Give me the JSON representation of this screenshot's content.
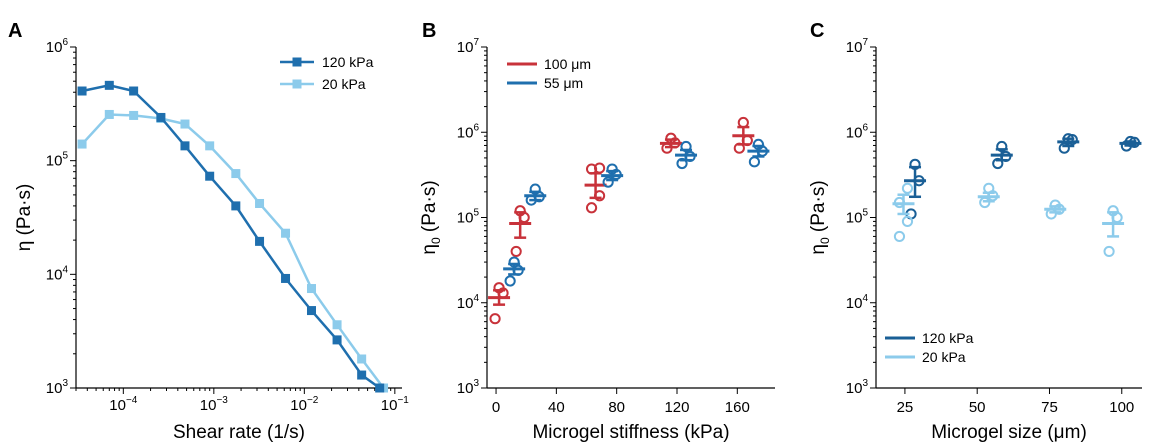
{
  "colors": {
    "dark_blue": "#1f6fae",
    "light_blue": "#8ccbeb",
    "red": "#c8323a",
    "c_dark": "#1a5f96"
  },
  "chart_data": [
    {
      "panel": "A",
      "type": "line",
      "xlabel": "Shear rate (1/s)",
      "ylabel": "η  (Pa·s)",
      "xscale": "log",
      "yscale": "log",
      "xlim": [
        3e-05,
        0.12
      ],
      "ylim": [
        1000,
        1000000
      ],
      "x_tick_labels": [
        {
          "base": "10",
          "exp": "−4"
        },
        {
          "base": "10",
          "exp": "−3"
        },
        {
          "base": "10",
          "exp": "−2"
        },
        {
          "base": "10",
          "exp": "−1"
        }
      ],
      "y_tick_labels": [
        {
          "base": "10",
          "exp": "3"
        },
        {
          "base": "10",
          "exp": "4"
        },
        {
          "base": "10",
          "exp": "5"
        },
        {
          "base": "10",
          "exp": "6"
        }
      ],
      "legend_placement": "top-right",
      "series": [
        {
          "name": "120 kPa",
          "color": "#1f6fae",
          "x": [
            3.5e-05,
            7e-05,
            0.00013,
            0.00026,
            0.00048,
            0.0009,
            0.00175,
            0.0032,
            0.0062,
            0.012,
            0.023,
            0.043,
            0.068
          ],
          "y": [
            410000,
            460000,
            410000,
            240000,
            135000,
            73000,
            40000,
            19500,
            9200,
            4800,
            2650,
            1300,
            1000
          ]
        },
        {
          "name": "20 kPa",
          "color": "#8ccbeb",
          "x": [
            3.5e-05,
            7e-05,
            0.00013,
            0.00026,
            0.00048,
            0.0009,
            0.00175,
            0.0032,
            0.0062,
            0.012,
            0.023,
            0.043,
            0.075
          ],
          "y": [
            140000,
            255000,
            250000,
            235000,
            210000,
            135000,
            77000,
            42000,
            23000,
            7500,
            3600,
            1800,
            1000
          ]
        }
      ]
    },
    {
      "panel": "B",
      "type": "scatter",
      "xlabel": "Microgel stiffness (kPa)",
      "ylabel_base": "η",
      "ylabel_sub": "0",
      "ylabel_unit": "(Pa·s)",
      "xscale": "linear",
      "yscale": "log",
      "xlim": [
        -6,
        185
      ],
      "ylim": [
        1000,
        10000000
      ],
      "x_ticks": [
        0,
        40,
        80,
        120,
        160
      ],
      "y_tick_labels": [
        {
          "base": "10",
          "exp": "3"
        },
        {
          "base": "10",
          "exp": "4"
        },
        {
          "base": "10",
          "exp": "5"
        },
        {
          "base": "10",
          "exp": "6"
        },
        {
          "base": "10",
          "exp": "7"
        }
      ],
      "legend_placement": "top-left",
      "series": [
        {
          "name": "100 μm",
          "color": "#c8323a",
          "groups": [
            {
              "x": 2,
              "points": [
                6500,
                13000,
                15000
              ],
              "mean": 11500,
              "sem": [
                9500,
                14000
              ]
            },
            {
              "x": 16,
              "points": [
                40000,
                100000,
                120000
              ],
              "mean": 85000,
              "sem": [
                58000,
                115000
              ]
            },
            {
              "x": 66,
              "points": [
                130000,
                180000,
                370000,
                380000
              ],
              "mean": 240000,
              "sem": [
                170000,
                330000
              ]
            },
            {
              "x": 116,
              "points": [
                650000,
                750000,
                850000
              ],
              "mean": 740000,
              "sem": [
                670000,
                820000
              ]
            },
            {
              "x": 164,
              "points": [
                650000,
                800000,
                1300000
              ],
              "mean": 910000,
              "sem": [
                720000,
                1150000
              ]
            }
          ]
        },
        {
          "name": "55 μm",
          "color": "#1f6fae",
          "groups": [
            {
              "x": 12,
              "points": [
                18000,
                24000,
                30000
              ],
              "mean": 25000,
              "sem": [
                21500,
                28500
              ]
            },
            {
              "x": 26,
              "points": [
                160000,
                175000,
                215000
              ],
              "mean": 180000,
              "sem": [
                160000,
                200000
              ]
            },
            {
              "x": 77,
              "points": [
                260000,
                320000,
                370000
              ],
              "mean": 310000,
              "sem": [
                275000,
                350000
              ]
            },
            {
              "x": 126,
              "points": [
                430000,
                520000,
                680000
              ],
              "mean": 540000,
              "sem": [
                470000,
                620000
              ]
            },
            {
              "x": 174,
              "points": [
                450000,
                600000,
                720000
              ],
              "mean": 600000,
              "sem": [
                520000,
                690000
              ]
            }
          ]
        }
      ]
    },
    {
      "panel": "C",
      "type": "scatter",
      "xlabel": "Microgel size (μm)",
      "ylabel_base": "η",
      "ylabel_sub": "0",
      "ylabel_unit": "(Pa·s)",
      "xscale": "linear",
      "yscale": "log",
      "xlim": [
        15,
        107
      ],
      "ylim": [
        1000,
        10000000
      ],
      "x_ticks": [
        25,
        50,
        75,
        100
      ],
      "y_tick_labels": [
        {
          "base": "10",
          "exp": "3"
        },
        {
          "base": "10",
          "exp": "4"
        },
        {
          "base": "10",
          "exp": "5"
        },
        {
          "base": "10",
          "exp": "6"
        },
        {
          "base": "10",
          "exp": "7"
        }
      ],
      "legend_placement": "bottom-left",
      "series": [
        {
          "name": "120 kPa",
          "color": "#1a5f96",
          "groups": [
            {
              "x": 28.5,
              "points": [
                110000,
                270000,
                420000
              ],
              "mean": 270000,
              "sem": [
                175000,
                390000
              ]
            },
            {
              "x": 58.5,
              "points": [
                430000,
                520000,
                680000
              ],
              "mean": 540000,
              "sem": [
                470000,
                630000
              ]
            },
            {
              "x": 81.5,
              "points": [
                650000,
                820000,
                840000
              ],
              "mean": 770000,
              "sem": [
                690000,
                840000
              ]
            },
            {
              "x": 103,
              "points": [
                690000,
                760000,
                780000
              ],
              "mean": 740000,
              "sem": [
                700000,
                780000
              ]
            }
          ]
        },
        {
          "name": "20 kPa",
          "color": "#8ccbeb",
          "groups": [
            {
              "x": 24.5,
              "points": [
                60000,
                90000,
                150000,
                220000
              ],
              "mean": 145000,
              "sem": [
                110000,
                185000
              ]
            },
            {
              "x": 54,
              "points": [
                150000,
                180000,
                220000
              ],
              "mean": 175000,
              "sem": [
                155000,
                195000
              ]
            },
            {
              "x": 77,
              "points": [
                110000,
                125000,
                140000
              ],
              "mean": 125000,
              "sem": [
                115000,
                135000
              ]
            },
            {
              "x": 97,
              "points": [
                40000,
                100000,
                120000
              ],
              "mean": 85000,
              "sem": [
                60000,
                115000
              ]
            }
          ]
        }
      ]
    }
  ]
}
